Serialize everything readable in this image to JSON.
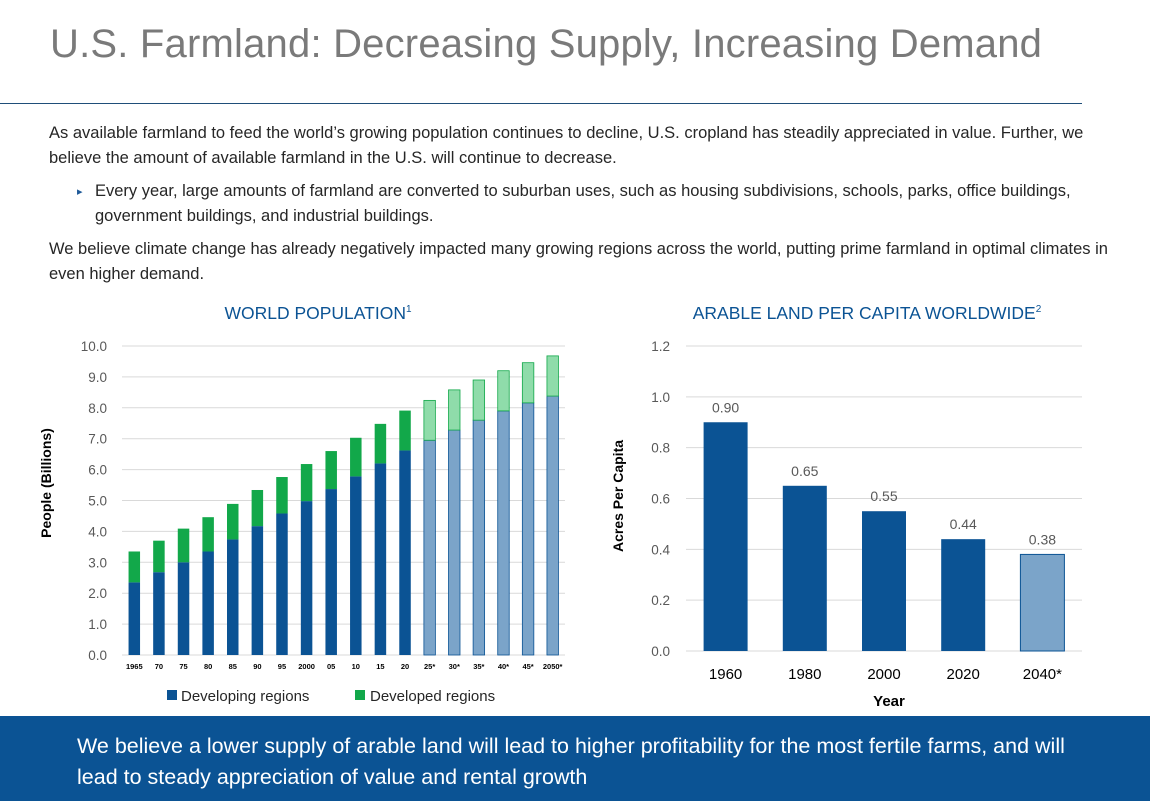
{
  "header": {
    "title": "U.S. Farmland: Decreasing Supply, Increasing Demand"
  },
  "intro": {
    "paragraph1": "As available farmland to feed the world’s growing population continues to decline, U.S. cropland has steadily appreciated in value.  Further, we believe the amount of available farmland in the U.S. will continue to decrease.",
    "bullet1": "Every year, large amounts of farmland are converted to suburban uses, such as housing subdivisions, schools, parks, office buildings, government buildings, and industrial buildings.",
    "paragraph2": "We believe climate change has already negatively impacted many growing regions across the world, putting prime farmland in optimal climates in even higher demand."
  },
  "footer": {
    "text": "We believe a lower supply of arable land will lead to higher profitability for the most fertile farms, and will lead to steady appreciation of value and rental growth"
  },
  "colors": {
    "dark_blue": "#0b5394",
    "green": "#12a84a",
    "light_blue": "#7ba4c9",
    "light_green": "#8fdcaa",
    "title_blue": "#0b5394"
  },
  "chart_data": [
    {
      "type": "bar",
      "stacked": true,
      "title": "WORLD POPULATION",
      "title_sup": "1",
      "ylabel": "People (Billions)",
      "xlabel": "",
      "ylim": [
        0,
        10
      ],
      "yticks": [
        "0.0",
        "1.0",
        "2.0",
        "3.0",
        "4.0",
        "5.0",
        "6.0",
        "7.0",
        "8.0",
        "9.0",
        "10.0"
      ],
      "categories": [
        "1965",
        "70",
        "75",
        "80",
        "85",
        "90",
        "95",
        "2000",
        "05",
        "10",
        "15",
        "20",
        "25*",
        "30*",
        "35*",
        "40*",
        "45*",
        "2050*"
      ],
      "projected_from_index": 12,
      "series": [
        {
          "name": "Developing regions",
          "values": [
            2.35,
            2.68,
            3.0,
            3.35,
            3.74,
            4.17,
            4.58,
            4.98,
            5.37,
            5.78,
            6.2,
            6.62,
            6.95,
            7.28,
            7.6,
            7.9,
            8.16,
            8.38
          ]
        },
        {
          "name": "Developed regions",
          "values": [
            1.0,
            1.02,
            1.09,
            1.11,
            1.15,
            1.17,
            1.18,
            1.2,
            1.23,
            1.25,
            1.28,
            1.29,
            1.29,
            1.3,
            1.3,
            1.3,
            1.3,
            1.3
          ]
        }
      ],
      "legend": "bottom"
    },
    {
      "type": "bar",
      "title": "ARABLE LAND PER CAPITA WORLDWIDE",
      "title_sup": "2",
      "ylabel": "Acres Per Capita",
      "xlabel": "Year",
      "ylim": [
        0,
        1.2
      ],
      "yticks": [
        "0.0",
        "0.2",
        "0.4",
        "0.6",
        "0.8",
        "1.0",
        "1.2"
      ],
      "categories": [
        "1960",
        "1980",
        "2000",
        "2020",
        "2040*"
      ],
      "values": [
        0.9,
        0.65,
        0.55,
        0.44,
        0.38
      ],
      "labels": [
        "0.90",
        "0.65",
        "0.55",
        "0.44",
        "0.38"
      ],
      "projected_from_index": 4
    }
  ]
}
